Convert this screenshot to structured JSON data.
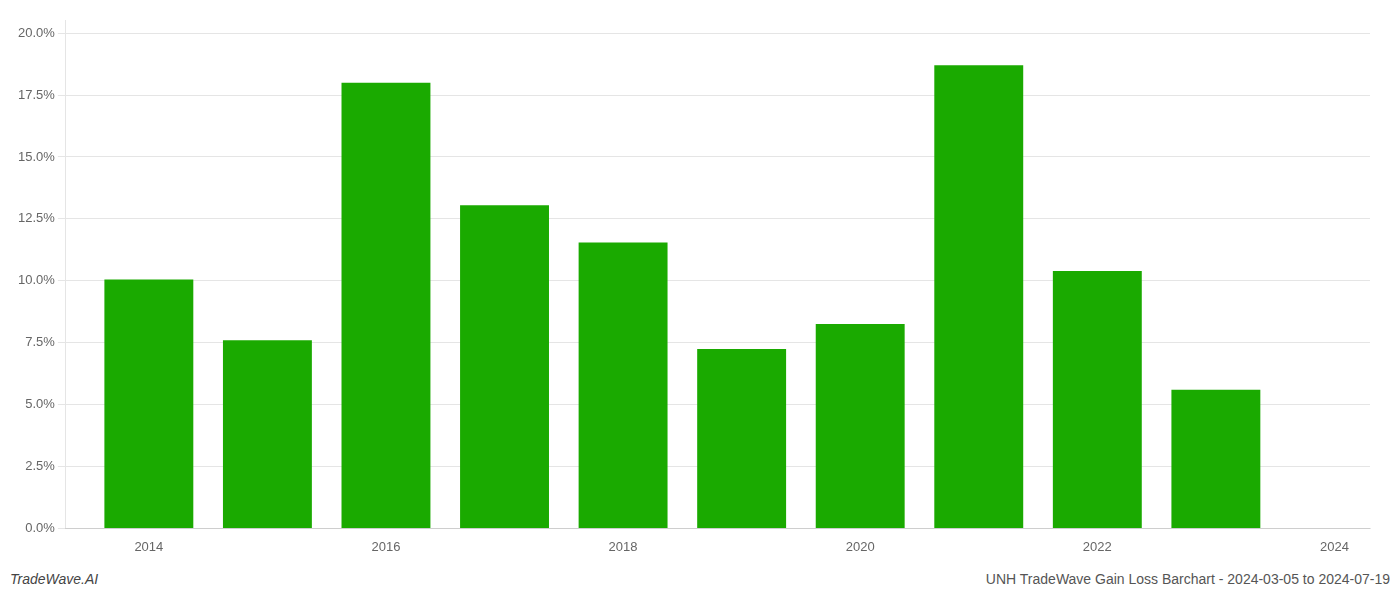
{
  "chart_data": {
    "type": "bar",
    "x": [
      2014,
      2015,
      2016,
      2017,
      2018,
      2019,
      2020,
      2021,
      2022,
      2023
    ],
    "values": [
      0.1005,
      0.076,
      0.18,
      0.1305,
      0.1155,
      0.0725,
      0.0825,
      0.187,
      0.104,
      0.056
    ],
    "color": "#1aaa00",
    "xlim": [
      2013.3,
      2024.3
    ],
    "xticks": [
      2014,
      2016,
      2018,
      2020,
      2022,
      2024
    ],
    "ylim": [
      0,
      0.205
    ],
    "yticks": [
      {
        "value": 0,
        "label": "0.0%"
      },
      {
        "value": 0.025,
        "label": "2.5%"
      },
      {
        "value": 0.05,
        "label": "5.0%"
      },
      {
        "value": 0.075,
        "label": "7.5%"
      },
      {
        "value": 0.1,
        "label": "10.0%"
      },
      {
        "value": 0.125,
        "label": "12.5%"
      },
      {
        "value": 0.15,
        "label": "15.0%"
      },
      {
        "value": 0.175,
        "label": "17.5%"
      },
      {
        "value": 0.2,
        "label": "20.0%"
      }
    ],
    "grid": "y",
    "annotations": [
      "TradeWave.AI",
      "UNH TradeWave Gain Loss Barchart - 2024-03-05 to 2024-07-19"
    ]
  }
}
